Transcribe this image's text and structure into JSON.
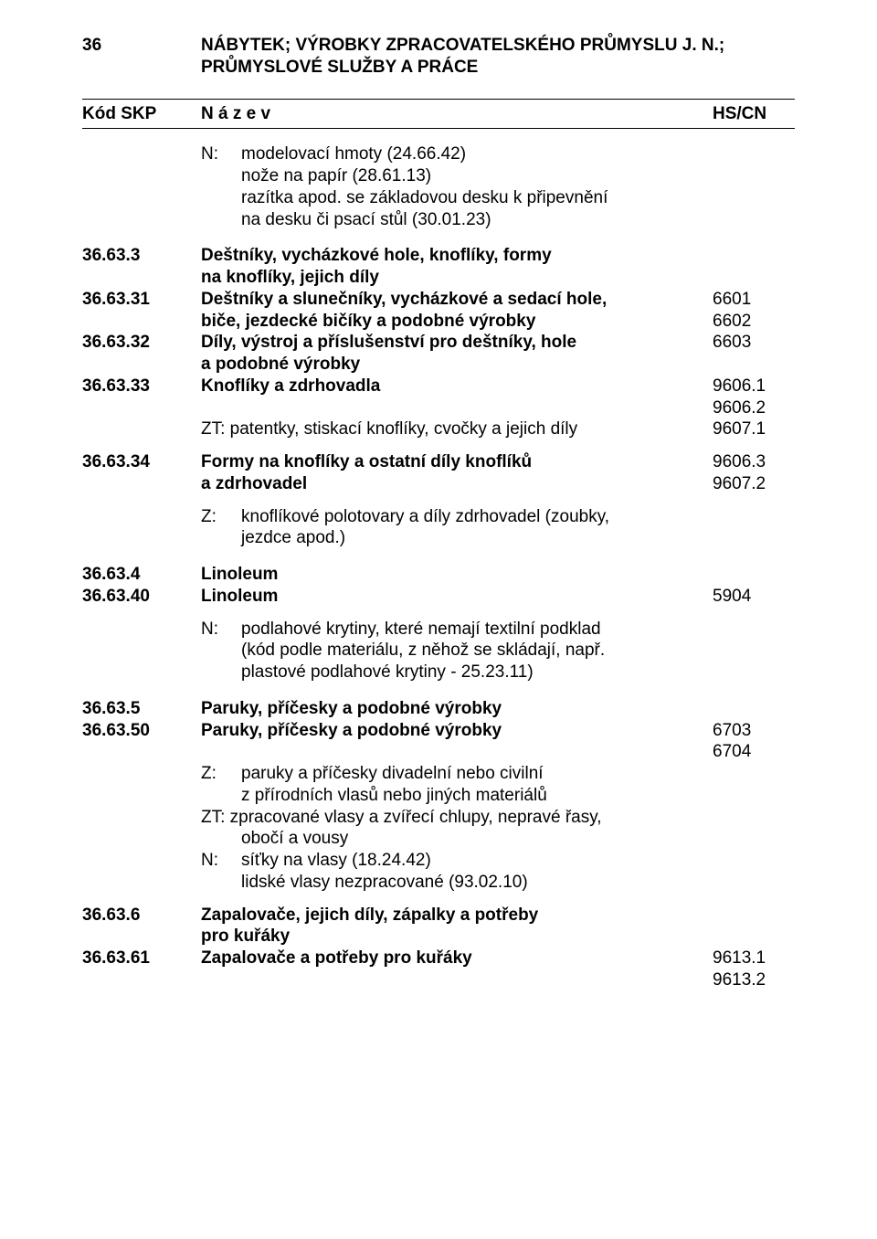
{
  "header": {
    "number": "36",
    "title_l1": "NÁBYTEK; VÝROBKY ZPRACOVATELSKÉHO PRŮMYSLU J. N.;",
    "title_l2": "PRŮMYSLOVÉ SLUŽBY A PRÁCE"
  },
  "thead": {
    "c1": "Kód SKP",
    "c2": "N á z e v",
    "c3": "HS/CN"
  },
  "intro_notes": {
    "tag": "N:",
    "l1": "modelovací hmoty (24.66.42)",
    "l2": "nože na papír (28.61.13)",
    "l3": "razítka apod. se základovou desku k připevnění",
    "l4": "na desku či psací stůl (30.01.23)"
  },
  "sec_63_3": {
    "code": "36.63.3",
    "name_l1": "Deštníky, vycházkové hole, knoflíky, formy",
    "name_l2": "na knoflíky, jejich díly"
  },
  "sec_63_31": {
    "code": "36.63.31",
    "name_l1": "Deštníky a slunečníky, vycházkové a sedací hole,",
    "name_l2": "biče, jezdecké bičíky a podobné výrobky",
    "hs1": "6601",
    "hs2": "6602"
  },
  "sec_63_32": {
    "code": "36.63.32",
    "name_l1": "Díly, výstroj a příslušenství pro deštníky, hole",
    "name_l2": "a podobné výrobky",
    "hs": "6603"
  },
  "sec_63_33": {
    "code": "36.63.33",
    "name": "Knoflíky a zdrhovadla",
    "hs1": "9606.1",
    "hs2": "9606.2",
    "zt": "ZT: patentky, stiskací knoflíky, cvočky a jejich díly",
    "hs3": "9607.1"
  },
  "sec_63_34": {
    "code": "36.63.34",
    "name_l1": "Formy na knoflíky a ostatní díly knoflíků",
    "name_l2": "a zdrhovadel",
    "hs1": "9606.3",
    "hs2": "9607.2",
    "ztag": "Z:",
    "z_l1": "knoflíkové polotovary a díly zdrhovadel (zoubky,",
    "z_l2": "jezdce apod.)"
  },
  "sec_63_4": {
    "code": "36.63.4",
    "name": "Linoleum"
  },
  "sec_63_40": {
    "code": "36.63.40",
    "name": "Linoleum",
    "hs": "5904",
    "ntag": "N:",
    "n_l1": "podlahové krytiny, které nemají textilní podklad",
    "n_l2": "(kód podle materiálu, z něhož se skládají, např.",
    "n_l3": "plastové podlahové krytiny - 25.23.11)"
  },
  "sec_63_5": {
    "code": "36.63.5",
    "name": "Paruky, příčesky a podobné výrobky"
  },
  "sec_63_50": {
    "code": "36.63.50",
    "name": "Paruky, příčesky a podobné výrobky",
    "hs1": "6703",
    "hs2": "6704",
    "ztag": "Z:",
    "z_l1": "paruky a příčesky divadelní nebo civilní",
    "z_l2": "z přírodních vlasů nebo jiných materiálů",
    "zt_l1": "ZT: zpracované vlasy a zvířecí chlupy, nepravé řasy,",
    "zt_l2": "obočí a vousy",
    "ntag": "N:",
    "n_l1": "síťky na vlasy (18.24.42)",
    "n_l2": "lidské vlasy nezpracované (93.02.10)"
  },
  "sec_63_6": {
    "code": "36.63.6",
    "name_l1": "Zapalovače, jejich díly, zápalky a potřeby",
    "name_l2": "pro kuřáky"
  },
  "sec_63_61": {
    "code": "36.63.61",
    "name": "Zapalovače a potřeby pro kuřáky",
    "hs1": "9613.1",
    "hs2": "9613.2"
  }
}
